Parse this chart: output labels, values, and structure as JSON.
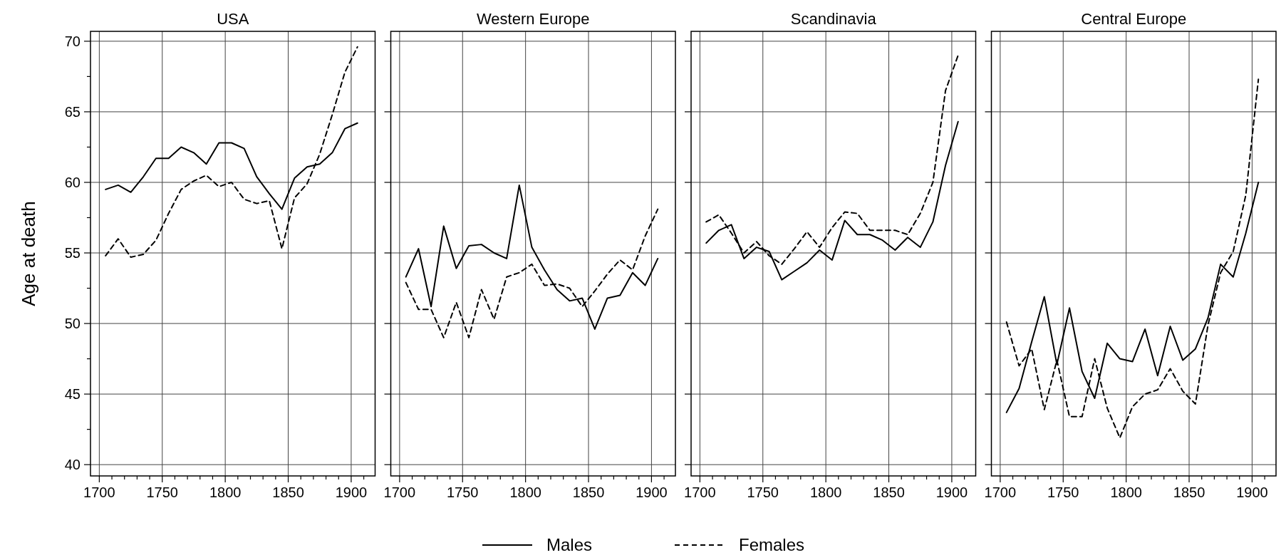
{
  "chart_data": [
    {
      "type": "line",
      "title": "USA",
      "ylabel": "Age at death",
      "x": [
        1705,
        1715,
        1725,
        1735,
        1745,
        1755,
        1765,
        1775,
        1785,
        1795,
        1805,
        1815,
        1825,
        1835,
        1845,
        1855,
        1865,
        1875,
        1885,
        1895,
        1905
      ],
      "xlim": [
        1693,
        1919
      ],
      "ylim": [
        39.2,
        70.7
      ],
      "xticks": [
        1700,
        {
          "value": 1710,
          "label": null
        },
        {
          "value": 1720,
          "label": null
        },
        {
          "value": 1730,
          "label": null
        },
        {
          "value": 1740,
          "label": null
        },
        1750,
        {
          "value": 1760,
          "label": null
        },
        {
          "value": 1770,
          "label": null
        },
        {
          "value": 1780,
          "label": null
        },
        {
          "value": 1790,
          "label": null
        },
        1800,
        {
          "value": 1810,
          "label": null
        },
        {
          "value": 1820,
          "label": null
        },
        {
          "value": 1830,
          "label": null
        },
        {
          "value": 1840,
          "label": null
        },
        1850,
        {
          "value": 1860,
          "label": null
        },
        {
          "value": 1870,
          "label": null
        },
        {
          "value": 1880,
          "label": null
        },
        {
          "value": 1890,
          "label": null
        },
        1900,
        {
          "value": 1910,
          "label": null
        }
      ],
      "yticks": [
        40,
        {
          "value": 42.5,
          "label": null
        },
        45,
        {
          "value": 47.5,
          "label": null
        },
        50,
        {
          "value": 52.5,
          "label": null
        },
        55,
        {
          "value": 57.5,
          "label": null
        },
        60,
        {
          "value": 62.5,
          "label": null
        },
        65,
        {
          "value": 67.5,
          "label": null
        },
        70
      ],
      "grid": true,
      "legend": "bottom",
      "series": [
        {
          "name": "Males",
          "color": "#000000",
          "line_style": "solid",
          "values": [
            59.5,
            59.8,
            59.3,
            60.4,
            61.7,
            61.7,
            62.5,
            62.1,
            61.3,
            62.8,
            62.8,
            62.4,
            60.4,
            59.2,
            58.1,
            60.3,
            61.1,
            61.3,
            62.1,
            63.8,
            64.2
          ]
        },
        {
          "name": "Females",
          "color": "#000000",
          "line_style": "dashed",
          "values": [
            54.8,
            56.0,
            54.7,
            54.9,
            55.9,
            57.8,
            59.5,
            60.1,
            60.5,
            59.7,
            60.0,
            58.8,
            58.5,
            58.7,
            55.3,
            58.9,
            59.9,
            62.0,
            64.8,
            67.8,
            69.6
          ]
        }
      ]
    },
    {
      "type": "line",
      "title": "Western Europe",
      "x": [
        1705,
        1715,
        1725,
        1735,
        1745,
        1755,
        1765,
        1775,
        1785,
        1795,
        1805,
        1815,
        1825,
        1835,
        1845,
        1855,
        1865,
        1875,
        1885,
        1895,
        1905
      ],
      "xlim": [
        1693,
        1919
      ],
      "ylim": [
        39.2,
        70.7
      ],
      "xticks": [
        1700,
        {
          "value": 1710,
          "label": null
        },
        {
          "value": 1720,
          "label": null
        },
        {
          "value": 1730,
          "label": null
        },
        {
          "value": 1740,
          "label": null
        },
        1750,
        {
          "value": 1760,
          "label": null
        },
        {
          "value": 1770,
          "label": null
        },
        {
          "value": 1780,
          "label": null
        },
        {
          "value": 1790,
          "label": null
        },
        1800,
        {
          "value": 1810,
          "label": null
        },
        {
          "value": 1820,
          "label": null
        },
        {
          "value": 1830,
          "label": null
        },
        {
          "value": 1840,
          "label": null
        },
        1850,
        {
          "value": 1860,
          "label": null
        },
        {
          "value": 1870,
          "label": null
        },
        {
          "value": 1880,
          "label": null
        },
        {
          "value": 1890,
          "label": null
        },
        1900,
        {
          "value": 1910,
          "label": null
        }
      ],
      "yticks": [
        40,
        45,
        50,
        55,
        60,
        65,
        70
      ],
      "grid": true,
      "tick_labels": "x",
      "series": [
        {
          "name": "Males",
          "color": "#000000",
          "line_style": "solid",
          "values": [
            53.3,
            55.3,
            51.2,
            56.9,
            53.9,
            55.5,
            55.6,
            55.0,
            54.6,
            59.8,
            55.4,
            53.8,
            52.4,
            51.6,
            51.8,
            49.6,
            51.8,
            52.0,
            53.6,
            52.7,
            54.6
          ]
        },
        {
          "name": "Females",
          "color": "#000000",
          "line_style": "dashed",
          "values": [
            52.9,
            51.0,
            51.0,
            49.0,
            51.5,
            49.0,
            52.4,
            50.3,
            53.3,
            53.6,
            54.2,
            52.7,
            52.8,
            52.5,
            51.2,
            52.3,
            53.5,
            54.5,
            53.8,
            56.2,
            58.1
          ]
        }
      ]
    },
    {
      "type": "line",
      "title": "Scandinavia",
      "x": [
        1705,
        1715,
        1725,
        1735,
        1745,
        1755,
        1765,
        1775,
        1785,
        1795,
        1805,
        1815,
        1825,
        1835,
        1845,
        1855,
        1865,
        1875,
        1885,
        1895,
        1905
      ],
      "xlim": [
        1693,
        1919
      ],
      "ylim": [
        39.2,
        70.7
      ],
      "xticks": [
        1700,
        {
          "value": 1710,
          "label": null
        },
        {
          "value": 1720,
          "label": null
        },
        {
          "value": 1730,
          "label": null
        },
        {
          "value": 1740,
          "label": null
        },
        1750,
        {
          "value": 1760,
          "label": null
        },
        {
          "value": 1770,
          "label": null
        },
        {
          "value": 1780,
          "label": null
        },
        {
          "value": 1790,
          "label": null
        },
        1800,
        {
          "value": 1810,
          "label": null
        },
        {
          "value": 1820,
          "label": null
        },
        {
          "value": 1830,
          "label": null
        },
        {
          "value": 1840,
          "label": null
        },
        1850,
        {
          "value": 1860,
          "label": null
        },
        {
          "value": 1870,
          "label": null
        },
        {
          "value": 1880,
          "label": null
        },
        {
          "value": 1890,
          "label": null
        },
        1900,
        {
          "value": 1910,
          "label": null
        }
      ],
      "yticks": [
        40,
        45,
        50,
        55,
        60,
        65,
        70
      ],
      "grid": true,
      "tick_labels": "x",
      "series": [
        {
          "name": "Males",
          "color": "#000000",
          "line_style": "solid",
          "values": [
            55.7,
            56.6,
            57.0,
            54.6,
            55.4,
            55.1,
            53.1,
            53.7,
            54.3,
            55.2,
            54.5,
            57.3,
            56.3,
            56.3,
            55.9,
            55.2,
            56.1,
            55.4,
            57.2,
            61.2,
            64.3
          ]
        },
        {
          "name": "Females",
          "color": "#000000",
          "line_style": "dashed",
          "values": [
            57.2,
            57.7,
            56.4,
            55.0,
            55.8,
            54.8,
            54.2,
            55.3,
            56.5,
            55.4,
            56.8,
            57.9,
            57.8,
            56.6,
            56.6,
            56.6,
            56.3,
            57.8,
            60.0,
            66.5,
            69.0
          ]
        }
      ]
    },
    {
      "type": "line",
      "title": "Central Europe",
      "x": [
        1705,
        1715,
        1725,
        1735,
        1745,
        1755,
        1765,
        1775,
        1785,
        1795,
        1805,
        1815,
        1825,
        1835,
        1845,
        1855,
        1865,
        1875,
        1885,
        1895,
        1905
      ],
      "xlim": [
        1693,
        1919
      ],
      "ylim": [
        39.2,
        70.7
      ],
      "xticks": [
        1700,
        {
          "value": 1710,
          "label": null
        },
        {
          "value": 1720,
          "label": null
        },
        {
          "value": 1730,
          "label": null
        },
        {
          "value": 1740,
          "label": null
        },
        1750,
        {
          "value": 1760,
          "label": null
        },
        {
          "value": 1770,
          "label": null
        },
        {
          "value": 1780,
          "label": null
        },
        {
          "value": 1790,
          "label": null
        },
        1800,
        {
          "value": 1810,
          "label": null
        },
        {
          "value": 1820,
          "label": null
        },
        {
          "value": 1830,
          "label": null
        },
        {
          "value": 1840,
          "label": null
        },
        1850,
        {
          "value": 1860,
          "label": null
        },
        {
          "value": 1870,
          "label": null
        },
        {
          "value": 1880,
          "label": null
        },
        {
          "value": 1890,
          "label": null
        },
        1900,
        {
          "value": 1910,
          "label": null
        }
      ],
      "yticks": [
        40,
        45,
        50,
        55,
        60,
        65,
        70
      ],
      "grid": true,
      "tick_labels": "x",
      "series": [
        {
          "name": "Males",
          "color": "#000000",
          "line_style": "solid",
          "values": [
            43.7,
            45.4,
            48.7,
            51.9,
            47.1,
            51.1,
            46.6,
            44.7,
            48.6,
            47.5,
            47.3,
            49.6,
            46.3,
            49.8,
            47.4,
            48.2,
            50.4,
            54.2,
            53.3,
            56.4,
            60.0
          ]
        },
        {
          "name": "Females",
          "color": "#000000",
          "line_style": "dashed",
          "values": [
            50.1,
            47.0,
            48.2,
            43.9,
            47.4,
            43.4,
            43.4,
            47.5,
            44.0,
            41.9,
            44.1,
            45.0,
            45.3,
            46.8,
            45.2,
            44.3,
            49.9,
            53.6,
            55.1,
            59.1,
            67.3
          ]
        }
      ]
    }
  ]
}
